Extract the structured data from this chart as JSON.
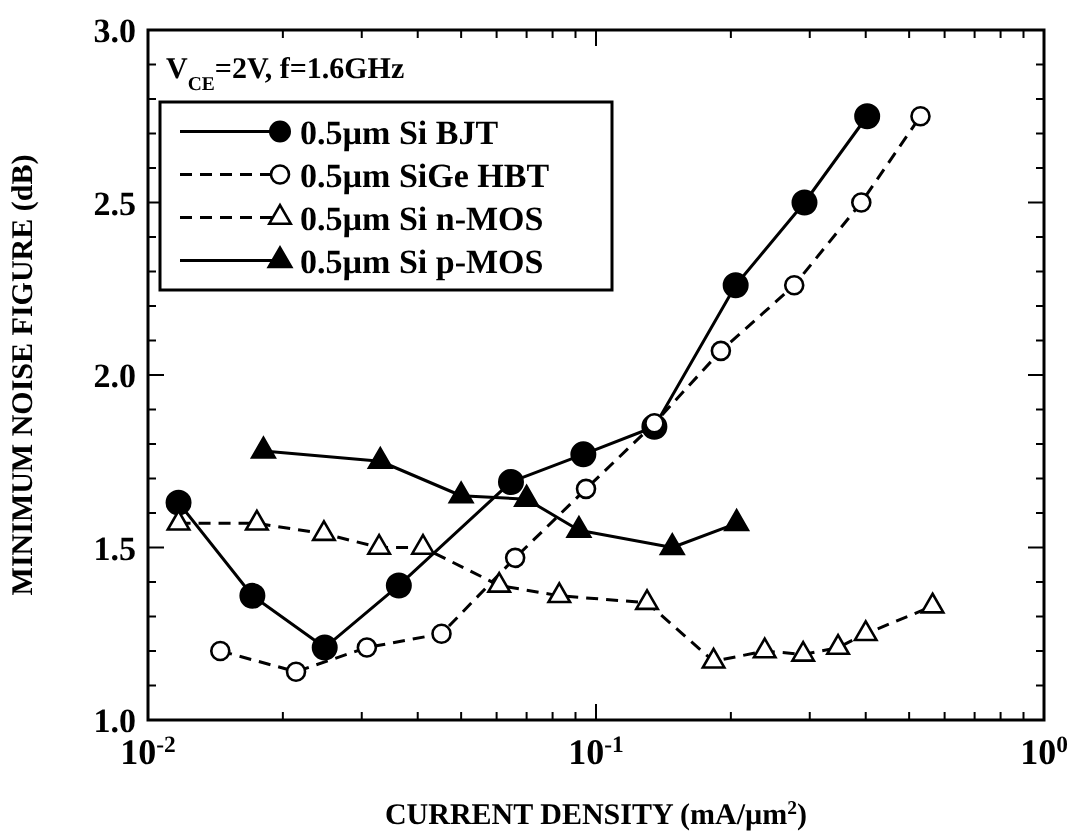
{
  "chart_data": {
    "type": "line",
    "xlabel": "CURRENT DENSITY (mA/µm$^{2}$)",
    "ylabel": "MINIMUM NOISE FIGURE (dB)",
    "log": "x",
    "xlim": [
      0.01,
      1
    ],
    "xticks": [
      {
        "value": 0.01,
        "label": "10$^{-2}$"
      },
      {
        "value": 0.1,
        "label": "10$^{-1}$"
      },
      {
        "value": 1,
        "label": "10$^{0}$"
      }
    ],
    "ylim": [
      1,
      3
    ],
    "yticks": [
      {
        "value": 1,
        "label": "1.0"
      },
      {
        "value": 1.5,
        "label": "1.5"
      },
      {
        "value": 2,
        "label": "2.0"
      },
      {
        "value": 2.5,
        "label": "2.5"
      },
      {
        "value": 3,
        "label": "3.0"
      }
    ],
    "grid": false,
    "legend": "top left",
    "annotations": [
      "V$_{CE}$=2V, f=1.6GHz"
    ],
    "series": [
      {
        "name": "0.5µm Si BJT",
        "color": "#000000",
        "marker": "circle",
        "line_style": "solid",
        "x": [
          0.0117,
          0.0171,
          0.0248,
          0.0363,
          0.0646,
          0.0937,
          0.135,
          0.205,
          0.292,
          0.403
        ],
        "values": [
          1.63,
          1.36,
          1.21,
          1.39,
          1.69,
          1.77,
          1.85,
          2.26,
          2.5,
          2.75
        ]
      },
      {
        "name": "0.5µm SiGe HBT",
        "color": "#000000",
        "marker": "circle-open",
        "line_style": "dashed",
        "x": [
          0.0145,
          0.0214,
          0.0308,
          0.0452,
          0.066,
          0.095,
          0.135,
          0.19,
          0.277,
          0.391,
          0.53
        ],
        "values": [
          1.2,
          1.14,
          1.21,
          1.25,
          1.47,
          1.67,
          1.86,
          2.07,
          2.26,
          2.5,
          2.75
        ]
      },
      {
        "name": "0.5µm Si n-MOS",
        "color": "#000000",
        "marker": "triangle-open",
        "line_style": "dashed",
        "x": [
          0.0117,
          0.0175,
          0.0247,
          0.0328,
          0.0411,
          0.0608,
          0.0828,
          0.13,
          0.183,
          0.238,
          0.29,
          0.347,
          0.4,
          0.564
        ],
        "values": [
          1.57,
          1.57,
          1.54,
          1.5,
          1.5,
          1.39,
          1.36,
          1.34,
          1.17,
          1.2,
          1.19,
          1.21,
          1.25,
          1.33
        ]
      },
      {
        "name": "0.5µm Si p-MOS",
        "color": "#000000",
        "marker": "triangle",
        "line_style": "solid",
        "x": [
          0.0181,
          0.033,
          0.05,
          0.07,
          0.0916,
          0.148,
          0.206
        ],
        "values": [
          1.78,
          1.75,
          1.65,
          1.64,
          1.55,
          1.5,
          1.57
        ]
      }
    ]
  }
}
